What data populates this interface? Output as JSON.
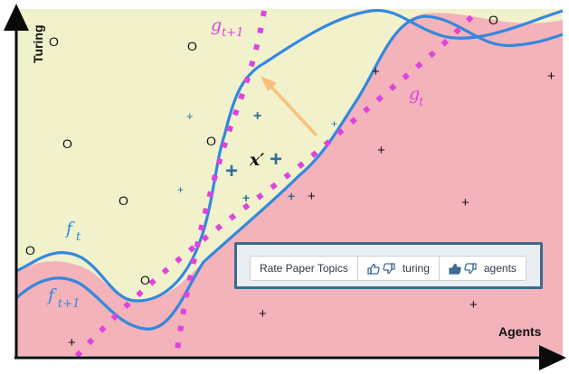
{
  "axes": {
    "y_label": "Turing",
    "x_label": "Agents"
  },
  "functions": {
    "f_t": {
      "base": "f",
      "sub": "t"
    },
    "f_t1": {
      "base": "f",
      "sub": "t+1"
    },
    "g_t": {
      "base": "g",
      "sub": "t"
    },
    "g_t1": {
      "base": "g",
      "sub": "t+1"
    }
  },
  "point_label": "x′",
  "markers": {
    "circle": "O",
    "plus": "+"
  },
  "rating": {
    "title": "Rate Paper Topics",
    "topics": [
      {
        "label": "turing",
        "state": "unrated"
      },
      {
        "label": "agents",
        "state": "liked"
      }
    ]
  },
  "colors": {
    "upper_region": "#f1f1cc",
    "lower_region": "#f4b2ba",
    "function_line": "#3388dd",
    "dotted_line": "#dd44dd",
    "arrow": "#f7c07a",
    "blue_plus": "#2f6f9a",
    "panel_border": "#3b6a8f"
  },
  "icons": {
    "thumbs_up": "thumbs-up-icon",
    "thumbs_down": "thumbs-down-icon"
  }
}
